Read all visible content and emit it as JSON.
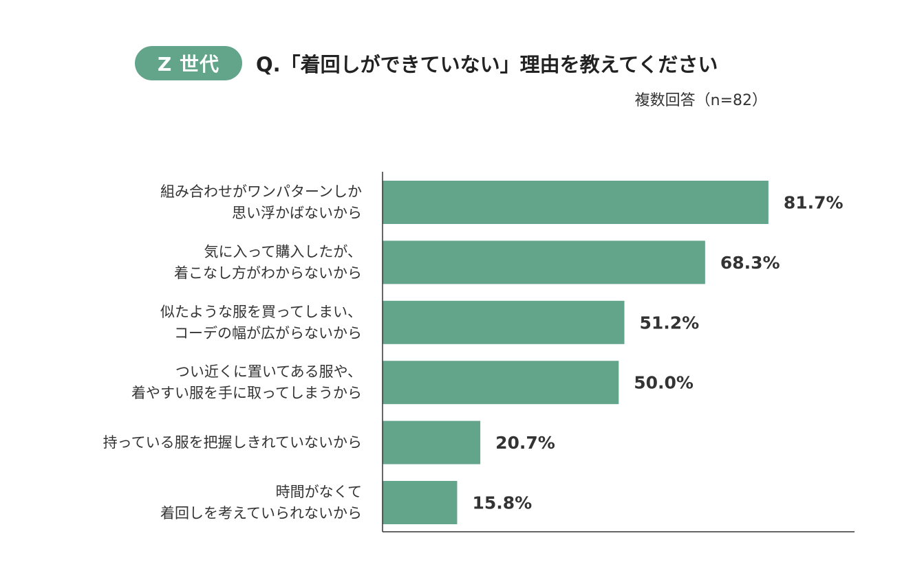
{
  "header": {
    "badge": "Z 世代",
    "title": "Q.「着回しができていない」理由を教えてください",
    "note": "複数回答（n=82）"
  },
  "colors": {
    "accent": "#63a58b",
    "axis": "#333333",
    "text": "#333333"
  },
  "chart_data": {
    "type": "bar",
    "orientation": "horizontal",
    "title": "Q.「着回しができていない」理由を教えてください",
    "categories": [
      [
        "組み合わせがワンパターンしか",
        "思い浮かばないから"
      ],
      [
        "気に入って購入したが、",
        "着こなし方がわからないから"
      ],
      [
        "似たような服を買ってしまい、",
        "コーデの幅が広がらないから"
      ],
      [
        "つい近くに置いてある服や、",
        "着やすい服を手に取ってしまうから"
      ],
      [
        "持っている服を把握しきれていないから"
      ],
      [
        "時間がなくて",
        "着回しを考えていられないから"
      ]
    ],
    "values": [
      81.7,
      68.3,
      51.2,
      50.0,
      20.7,
      15.8
    ],
    "value_labels": [
      "81.7%",
      "68.3%",
      "51.2%",
      "50.0%",
      "20.7%",
      "15.8%"
    ],
    "unit": "%",
    "xlim": [
      0,
      100
    ],
    "grid": false,
    "legend": "none"
  }
}
